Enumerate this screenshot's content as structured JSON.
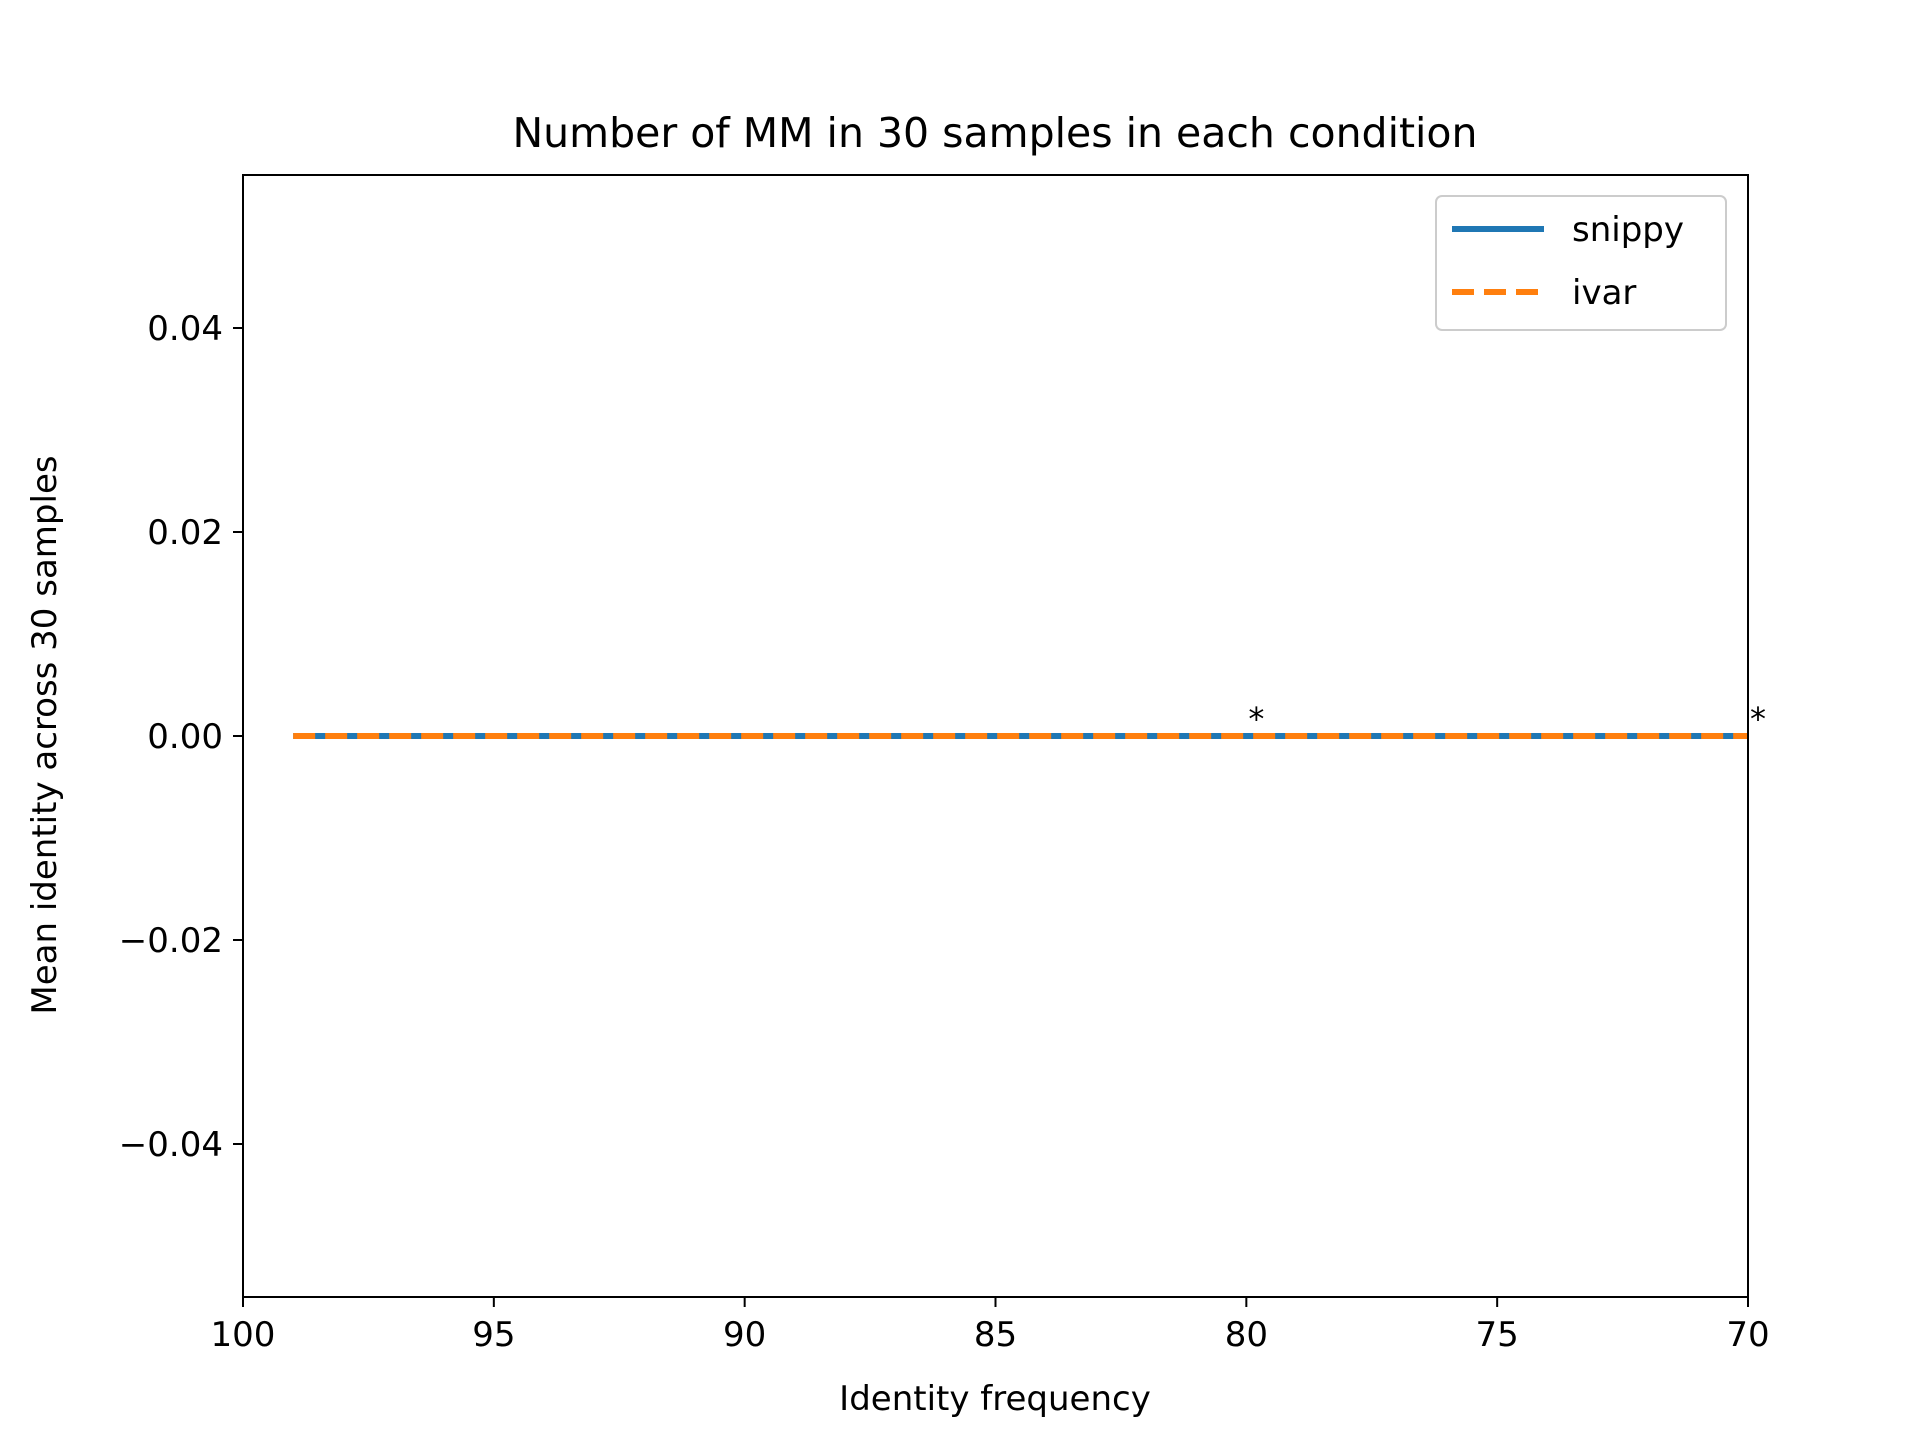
{
  "chart_data": {
    "type": "line",
    "title": "Number of MM in 30 samples in each condition",
    "xlabel": "Identity frequency",
    "ylabel": "Mean identity across 30 samples",
    "xlim": [
      100,
      70
    ],
    "ylim": [
      -0.055,
      0.055
    ],
    "x_inverted": true,
    "xticks": [
      100,
      95,
      90,
      85,
      80,
      75,
      70
    ],
    "xtick_labels": [
      "100",
      "95",
      "90",
      "85",
      "80",
      "75",
      "70"
    ],
    "yticks": [
      0.04,
      0.02,
      0.0,
      -0.02,
      -0.04
    ],
    "ytick_labels": [
      "0.04",
      "0.02",
      "0.00",
      "−0.02",
      "−0.04"
    ],
    "grid": false,
    "legend_position": "top-right",
    "x": [
      99,
      98,
      97,
      96,
      95,
      94,
      93,
      92,
      91,
      90,
      89,
      88,
      87,
      86,
      85,
      84,
      83,
      82,
      81,
      80,
      79,
      78,
      77,
      76,
      75,
      74,
      73,
      72,
      71,
      70
    ],
    "series": [
      {
        "name": "snippy",
        "color": "#1f77b4",
        "style": "solid",
        "values": [
          0,
          0,
          0,
          0,
          0,
          0,
          0,
          0,
          0,
          0,
          0,
          0,
          0,
          0,
          0,
          0,
          0,
          0,
          0,
          0,
          0,
          0,
          0,
          0,
          0,
          0,
          0,
          0,
          0,
          0
        ]
      },
      {
        "name": "ivar",
        "color": "#ff7f0e",
        "style": "dashed",
        "values": [
          0,
          0,
          0,
          0,
          0,
          0,
          0,
          0,
          0,
          0,
          0,
          0,
          0,
          0,
          0,
          0,
          0,
          0,
          0,
          0,
          0,
          0,
          0,
          0,
          0,
          0,
          0,
          0,
          0,
          0
        ]
      }
    ],
    "annotations": [
      {
        "text": "*",
        "x": 79.8,
        "y": 0.0
      },
      {
        "text": "*",
        "x": 69.8,
        "y": 0.0
      }
    ]
  }
}
